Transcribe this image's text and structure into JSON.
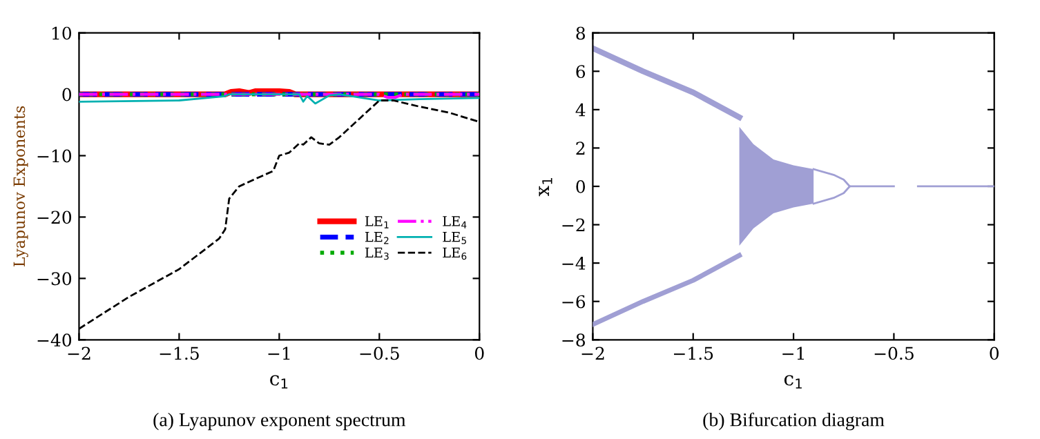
{
  "chart_data": [
    {
      "type": "line",
      "xlabel": "c$_{1}$",
      "ylabel": "Lyapunov Exponents",
      "xlim": [
        -2,
        0
      ],
      "ylim": [
        -40,
        10
      ],
      "xticks": [
        {
          "value": -2,
          "label": "−2"
        },
        {
          "value": -1.5,
          "label": "−1.5"
        },
        {
          "value": -1,
          "label": "−1"
        },
        {
          "value": -0.5,
          "label": "−0.5"
        },
        0
      ],
      "yticks": [
        {
          "value": -40,
          "label": "−40"
        },
        {
          "value": -30,
          "label": "−30"
        },
        {
          "value": -20,
          "label": "−20"
        },
        {
          "value": -10,
          "label": "−10"
        },
        0,
        10
      ],
      "grid": false,
      "legend": "bottom right",
      "series": [
        {
          "name": "LE$_{1}$",
          "color": "#ff0000",
          "line_style": "solid",
          "x": [
            -2,
            -1.27,
            -1.24,
            -1.2,
            -1.15,
            -1.12,
            -1.0,
            -0.95,
            -0.92,
            -0.5,
            0
          ],
          "values": [
            0,
            0,
            0.4,
            0.5,
            0.2,
            0.5,
            0.5,
            0.4,
            0,
            0,
            0
          ]
        },
        {
          "name": "LE$_{2}$",
          "color": "#0000ff",
          "line_style": "dashed",
          "x": [
            -2,
            -1,
            0
          ],
          "values": [
            0,
            0,
            0
          ]
        },
        {
          "name": "LE$_{3}$",
          "color": "#00aa00",
          "line_style": "dotted",
          "x": [
            -2,
            -1,
            0
          ],
          "values": [
            0,
            0,
            0
          ]
        },
        {
          "name": "LE$_{4}$",
          "color": "#ff00ff",
          "line_style": "dashdot",
          "x": [
            -2,
            -0.5,
            -0.46,
            -0.42,
            -0.38,
            0
          ],
          "values": [
            0,
            0,
            -0.5,
            -0.5,
            0,
            0
          ]
        },
        {
          "name": "LE$_{5}$",
          "color": "#00b0b0",
          "line_style": "solid",
          "x": [
            -2,
            -1.5,
            -1.27,
            -1.25,
            -0.9,
            -0.88,
            -0.86,
            -0.82,
            -0.75,
            -0.7,
            -0.6,
            -0.5,
            -0.3,
            0
          ],
          "values": [
            -1.2,
            -1.0,
            -0.3,
            0,
            0,
            -1.2,
            -0.3,
            -1.5,
            -0.2,
            0,
            -0.5,
            -1.0,
            -0.8,
            -0.6
          ]
        },
        {
          "name": "LE$_{6}$",
          "color": "#000000",
          "line_style": "dashed",
          "x": [
            -2,
            -1.75,
            -1.5,
            -1.3,
            -1.27,
            -1.25,
            -1.2,
            -1.1,
            -1.03,
            -1.0,
            -0.95,
            -0.9,
            -0.88,
            -0.84,
            -0.8,
            -0.75,
            -0.7,
            -0.6,
            -0.5,
            -0.43,
            -0.3,
            -0.15,
            0
          ],
          "values": [
            -38.2,
            -33,
            -28.5,
            -23.5,
            -22,
            -17,
            -15,
            -13.5,
            -12.5,
            -10,
            -9.5,
            -8,
            -8.2,
            -7,
            -8,
            -8.2,
            -7,
            -4,
            -1,
            -1,
            -2,
            -3,
            -4.5
          ]
        }
      ],
      "annotations": [
        "(a) Lyapunov exponent spectrum"
      ]
    },
    {
      "type": "line",
      "xlabel": "c$_{1}$",
      "ylabel": "x$_{1}$",
      "xlim": [
        -2,
        0
      ],
      "ylim": [
        -8,
        8
      ],
      "xticks": [
        {
          "value": -2,
          "label": "−2"
        },
        {
          "value": -1.5,
          "label": "−1.5"
        },
        {
          "value": -1,
          "label": "−1"
        },
        {
          "value": -0.5,
          "label": "−0.5"
        },
        0
      ],
      "yticks": [
        {
          "value": -8,
          "label": "−8"
        },
        {
          "value": -6,
          "label": "−6"
        },
        {
          "value": -4,
          "label": "−4"
        },
        {
          "value": -2,
          "label": "−2"
        },
        0,
        2,
        4,
        6,
        8
      ],
      "grid": false,
      "series": [
        {
          "color": "#a09fd4",
          "x": [
            -2,
            -1.75,
            -1.5,
            -1.27
          ],
          "values": [
            7.2,
            6.0,
            4.9,
            3.6
          ]
        },
        {
          "color": "#a09fd4",
          "x": [
            -2,
            -1.75,
            -1.5,
            -1.27
          ],
          "values": [
            -7.2,
            -6.0,
            -4.9,
            -3.6
          ]
        },
        {
          "type": "area",
          "color": "#a09fd4",
          "x": [
            -1.27,
            -1.2,
            -1.1,
            -1.0,
            -0.9
          ],
          "values": [
            3.1,
            2.2,
            1.4,
            1.1,
            0.9
          ]
        },
        {
          "type": "area",
          "color": "#a09fd4",
          "x": [
            -1.27,
            -1.2,
            -1.1,
            -1.0,
            -0.9
          ],
          "values": [
            -3.1,
            -2.2,
            -1.4,
            -1.1,
            -0.9
          ]
        },
        {
          "color": "#a09fd4",
          "x": [
            -0.9,
            -0.8,
            -0.75,
            -0.72
          ],
          "values": [
            0.9,
            0.6,
            0.35,
            0
          ]
        },
        {
          "color": "#a09fd4",
          "x": [
            -0.9,
            -0.8,
            -0.75,
            -0.72
          ],
          "values": [
            -0.9,
            -0.6,
            -0.35,
            0
          ]
        },
        {
          "color": "#a09fd4",
          "x": [
            -0.72,
            -0.5,
            -0.47,
            -0.38,
            0
          ],
          "values": [
            0,
            0,
            null,
            0,
            0
          ]
        }
      ],
      "annotations": [
        "(b) Bifurcation diagram"
      ]
    }
  ]
}
